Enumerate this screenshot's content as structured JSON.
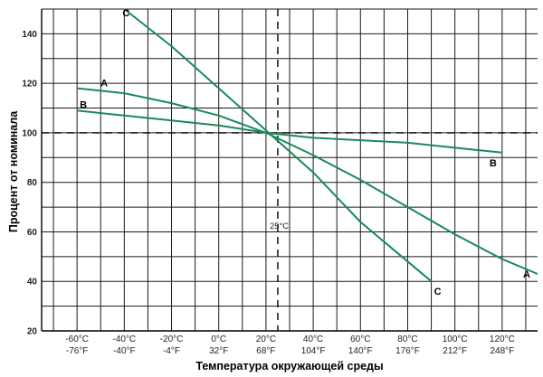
{
  "chart_data": {
    "type": "line",
    "xlabel": "Температура окружающей среды",
    "ylabel": "Процент от номинала",
    "xlim": [
      -75,
      135
    ],
    "ylim": [
      20,
      150
    ],
    "x_ticks": [
      {
        "value": -60,
        "c": "-60°C",
        "f": "-76°F"
      },
      {
        "value": -40,
        "c": "-40°C",
        "f": "-40°F"
      },
      {
        "value": -20,
        "c": "-20°C",
        "f": "-4°F"
      },
      {
        "value": 0,
        "c": "0°C",
        "f": "32°F"
      },
      {
        "value": 20,
        "c": "20°C",
        "f": "68°F"
      },
      {
        "value": 40,
        "c": "40°C",
        "f": "104°F"
      },
      {
        "value": 60,
        "c": "60°C",
        "f": "140°F"
      },
      {
        "value": 80,
        "c": "80°C",
        "f": "176°F"
      },
      {
        "value": 100,
        "c": "100°C",
        "f": "212°F"
      },
      {
        "value": 120,
        "c": "120°C",
        "f": "248°F"
      }
    ],
    "y_ticks": [
      20,
      40,
      60,
      80,
      100,
      120,
      140
    ],
    "grid": true,
    "series": [
      {
        "name": "A",
        "x": [
          -60,
          -40,
          -20,
          0,
          20,
          40,
          60,
          80,
          100,
          120,
          135
        ],
        "y": [
          118,
          116,
          112,
          107,
          100,
          91,
          81,
          70,
          59,
          49,
          43
        ]
      },
      {
        "name": "B",
        "x": [
          -60,
          -40,
          -20,
          0,
          20,
          40,
          60,
          80,
          100,
          120
        ],
        "y": [
          109,
          107,
          105,
          103,
          100,
          98,
          97,
          96,
          94,
          92
        ]
      },
      {
        "name": "C",
        "x": [
          -40,
          -20,
          0,
          20,
          40,
          60,
          80,
          90
        ],
        "y": [
          150,
          135,
          118,
          101,
          84,
          64,
          48,
          40
        ]
      }
    ],
    "line_color": "#1a8a5a",
    "reference_lines": {
      "horizontal": {
        "y": 100
      },
      "vertical": {
        "x": 25,
        "label": "25°C"
      }
    }
  }
}
